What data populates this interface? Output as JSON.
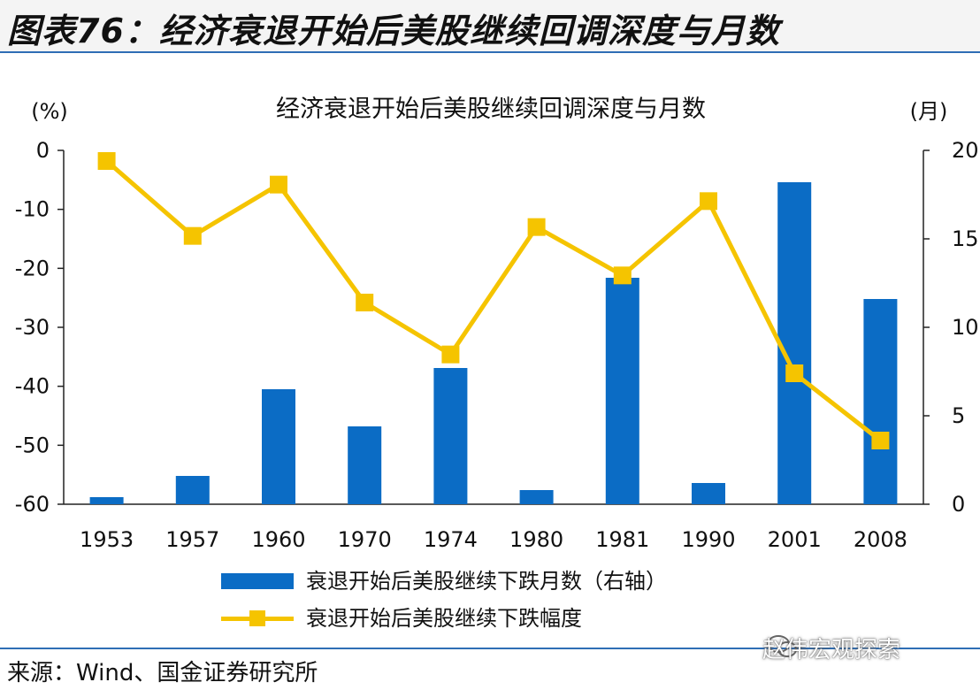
{
  "header": {
    "title": "图表76：经济衰退开始后美股继续回调深度与月数"
  },
  "footer": {
    "source": "来源：Wind、国金证券研究所",
    "watermark": "赵伟宏观探索"
  },
  "colors": {
    "bar": "#0b6cc5",
    "line": "#f5c400",
    "header_rule": "#2f6eb5"
  },
  "chart_data": {
    "type": "bar",
    "title": "经济衰退开始后美股继续回调深度与月数",
    "left_axis_unit": "(%)",
    "right_axis_unit": "(月)",
    "categories": [
      "1953",
      "1957",
      "1960",
      "1970",
      "1974",
      "1980",
      "1981",
      "1990",
      "2001",
      "2008"
    ],
    "left_ylim": [
      -60,
      0
    ],
    "left_ticks": [
      "0",
      "-10",
      "-20",
      "-30",
      "-40",
      "-50",
      "-60"
    ],
    "left_tick_values": [
      0,
      -10,
      -20,
      -30,
      -40,
      -50,
      -60
    ],
    "right_ylim": [
      0,
      20
    ],
    "right_ticks": [
      "20",
      "15",
      "10",
      "5",
      "0"
    ],
    "right_tick_values": [
      20,
      15,
      10,
      5,
      0
    ],
    "series": [
      {
        "name": "衰退开始后美股继续下跌月数（右轴）",
        "type": "bar",
        "axis": "right",
        "values": [
          0.4,
          1.6,
          6.5,
          4.4,
          7.7,
          0.8,
          12.8,
          1.2,
          18.2,
          11.6
        ]
      },
      {
        "name": "衰退开始后美股继续下跌幅度",
        "type": "line",
        "axis": "left",
        "values": [
          -1.8,
          -14.5,
          -5.8,
          -25.8,
          -34.6,
          -13.0,
          -21.2,
          -8.6,
          -37.8,
          -49.2
        ]
      }
    ],
    "legend_position": "bottom",
    "grid": false
  }
}
